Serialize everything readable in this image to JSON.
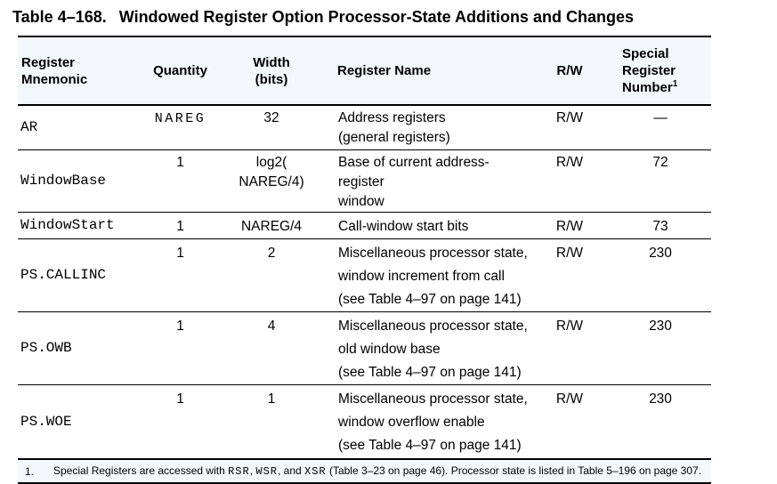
{
  "title": {
    "label": "Table 4–168.",
    "text": "Windowed Register Option Processor-State Additions and Changes"
  },
  "table": {
    "header_bg": "#f2f8fc",
    "columns": [
      {
        "id": "mnemonic",
        "lines": [
          "Register",
          "Mnemonic"
        ]
      },
      {
        "id": "quantity",
        "lines": [
          "Quantity"
        ]
      },
      {
        "id": "width-bits",
        "lines": [
          "Width",
          "(bits)"
        ]
      },
      {
        "id": "register-name",
        "lines": [
          "Register Name"
        ]
      },
      {
        "id": "rw",
        "lines": [
          "R/W"
        ]
      },
      {
        "id": "special-register-number",
        "lines": [
          "Special",
          "Register",
          "Number"
        ],
        "superscript": "1"
      }
    ],
    "rows": [
      {
        "mnemonic": "AR",
        "quantity": "NAREG",
        "width_lines": [
          "32"
        ],
        "name_lines": [
          "Address registers",
          "(general registers)"
        ],
        "rw": "R/W",
        "special": "—"
      },
      {
        "mnemonic": "WindowBase",
        "quantity": "1",
        "width_lines": [
          "log2(",
          "NAREG/4)"
        ],
        "name_lines": [
          "Base of current address-register",
          "window"
        ],
        "rw": "R/W",
        "special": "72"
      },
      {
        "mnemonic": "WindowStart",
        "quantity": "1",
        "width_lines": [
          "NAREG/4"
        ],
        "name_lines": [
          "Call-window start bits"
        ],
        "rw": "R/W",
        "special": "73"
      },
      {
        "mnemonic": "PS.CALLINC",
        "quantity": "1",
        "width_lines": [
          "2"
        ],
        "name_lines": [
          "Miscellaneous processor state,",
          "window increment from call",
          "(see Table 4–97 on page 141)"
        ],
        "rw": "R/W",
        "special": "230"
      },
      {
        "mnemonic": "PS.OWB",
        "quantity": "1",
        "width_lines": [
          "4"
        ],
        "name_lines": [
          "Miscellaneous processor state,",
          "old window base",
          "(see Table 4–97 on page 141)"
        ],
        "rw": "R/W",
        "special": "230"
      },
      {
        "mnemonic": "PS.WOE",
        "quantity": "1",
        "width_lines": [
          "1"
        ],
        "name_lines": [
          "Miscellaneous processor state,",
          "window overflow enable",
          "(see Table 4–97 on page 141)"
        ],
        "rw": "R/W",
        "special": "230"
      }
    ]
  },
  "footnote": {
    "number": "1.",
    "segments": [
      {
        "text": "Special Registers are accessed with "
      },
      {
        "text": "RSR",
        "mono": true
      },
      {
        "text": ", "
      },
      {
        "text": "WSR",
        "mono": true
      },
      {
        "text": ", and "
      },
      {
        "text": "XSR",
        "mono": true
      },
      {
        "text": " (Table 3–23 on page 46). Processor state is listed in Table 5–196 on page 307."
      }
    ]
  }
}
